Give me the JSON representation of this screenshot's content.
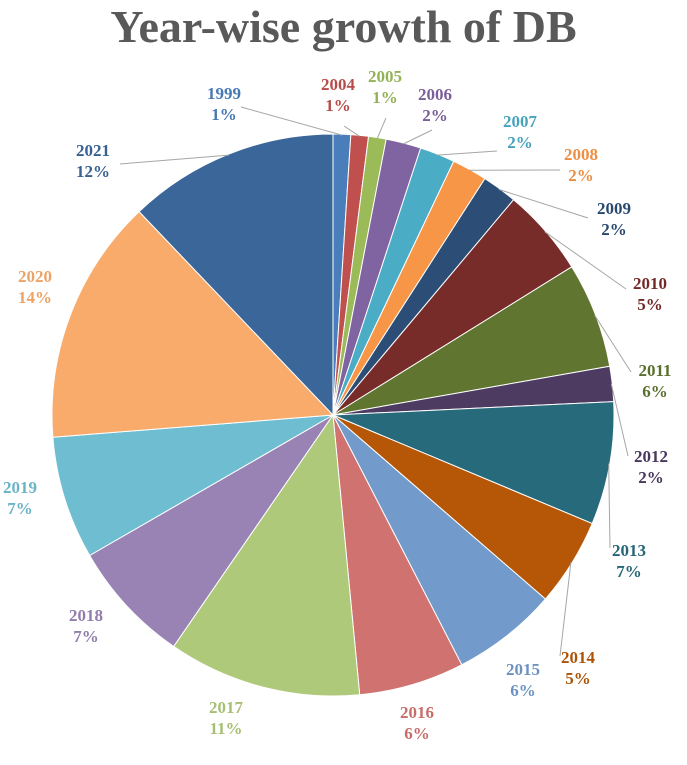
{
  "chart_data": {
    "type": "pie",
    "title": "Year-wise growth of DB",
    "slices": [
      {
        "label": "1999",
        "value": 1,
        "display": "1%",
        "color": "#4a7ebb"
      },
      {
        "label": "2004",
        "value": 1,
        "display": "1%",
        "color": "#c0504d"
      },
      {
        "label": "2005",
        "value": 1,
        "display": "1%",
        "color": "#9bbb59"
      },
      {
        "label": "2006",
        "value": 2,
        "display": "2%",
        "color": "#8064a2"
      },
      {
        "label": "2007",
        "value": 2,
        "display": "2%",
        "color": "#4bacc6"
      },
      {
        "label": "2008",
        "value": 2,
        "display": "2%",
        "color": "#f79646"
      },
      {
        "label": "2009",
        "value": 2,
        "display": "2%",
        "color": "#2c4d75"
      },
      {
        "label": "2010",
        "value": 5,
        "display": "5%",
        "color": "#772c2a"
      },
      {
        "label": "2011",
        "value": 6,
        "display": "6%",
        "color": "#5f7530"
      },
      {
        "label": "2012",
        "value": 2,
        "display": "2%",
        "color": "#4d3b62"
      },
      {
        "label": "2013",
        "value": 7,
        "display": "7%",
        "color": "#276a7c"
      },
      {
        "label": "2014",
        "value": 5,
        "display": "5%",
        "color": "#b65708"
      },
      {
        "label": "2015",
        "value": 6,
        "display": "6%",
        "color": "#729aca"
      },
      {
        "label": "2016",
        "value": 6,
        "display": "6%",
        "color": "#d07370"
      },
      {
        "label": "2017",
        "value": 11,
        "display": "11%",
        "color": "#afc97a"
      },
      {
        "label": "2018",
        "value": 7,
        "display": "7%",
        "color": "#9983b5"
      },
      {
        "label": "2019",
        "value": 7,
        "display": "7%",
        "color": "#6fbdd1"
      },
      {
        "label": "2020",
        "value": 14,
        "display": "14%",
        "color": "#f9ab6b"
      },
      {
        "label": "2021",
        "value": 12,
        "display": "12%",
        "color": "#3a6699"
      }
    ]
  }
}
